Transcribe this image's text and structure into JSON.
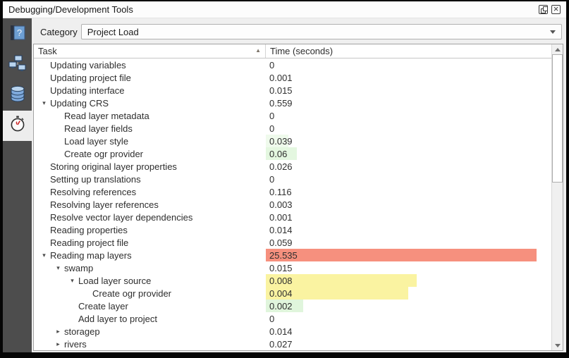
{
  "window": {
    "title": "Debugging/Development Tools"
  },
  "titlebar": {
    "buttons": [
      "float",
      "close"
    ]
  },
  "sidebar": {
    "tabs": [
      {
        "name": "help",
        "icon": "help-book-icon",
        "active": false
      },
      {
        "name": "network-logger",
        "icon": "network-icon",
        "active": false
      },
      {
        "name": "query-logger",
        "icon": "database-icon",
        "active": false
      },
      {
        "name": "profiler",
        "icon": "stopwatch-icon",
        "active": true
      }
    ]
  },
  "toolbar": {
    "category_label": "Category",
    "category_value": "Project Load"
  },
  "table": {
    "columns": [
      {
        "label": "Task",
        "sort": "asc"
      },
      {
        "label": "Time (seconds)",
        "sort": null
      }
    ],
    "rows": [
      {
        "label": "Updating variables",
        "level": 0,
        "expander": "none",
        "value": "0",
        "bar_pct": 0,
        "bar_color": null
      },
      {
        "label": "Updating project file",
        "level": 0,
        "expander": "none",
        "value": "0.001",
        "bar_pct": 0,
        "bar_color": null
      },
      {
        "label": "Updating interface",
        "level": 0,
        "expander": "none",
        "value": "0.015",
        "bar_pct": 0,
        "bar_color": null
      },
      {
        "label": "Updating CRS",
        "level": 0,
        "expander": "open",
        "value": "0.559",
        "bar_pct": 0,
        "bar_color": null
      },
      {
        "label": "Read layer metadata",
        "level": 1,
        "expander": "none",
        "value": "0",
        "bar_pct": 0,
        "bar_color": null
      },
      {
        "label": "Read layer fields",
        "level": 1,
        "expander": "none",
        "value": "0",
        "bar_pct": 0,
        "bar_color": null
      },
      {
        "label": "Load layer style",
        "level": 1,
        "expander": "none",
        "value": "0.039",
        "bar_pct": 8,
        "bar_color": "#effaec"
      },
      {
        "label": "Create ogr provider",
        "level": 1,
        "expander": "none",
        "value": "0.06",
        "bar_pct": 11,
        "bar_color": "#e4f7e0"
      },
      {
        "label": "Storing original layer properties",
        "level": 0,
        "expander": "none",
        "value": "0.026",
        "bar_pct": 0,
        "bar_color": null
      },
      {
        "label": "Setting up translations",
        "level": 0,
        "expander": "none",
        "value": "0",
        "bar_pct": 0,
        "bar_color": null
      },
      {
        "label": "Resolving references",
        "level": 0,
        "expander": "none",
        "value": "0.116",
        "bar_pct": 0,
        "bar_color": null
      },
      {
        "label": "Resolving layer references",
        "level": 0,
        "expander": "none",
        "value": "0.003",
        "bar_pct": 0,
        "bar_color": null
      },
      {
        "label": "Resolve vector layer dependencies",
        "level": 0,
        "expander": "none",
        "value": "0.001",
        "bar_pct": 0,
        "bar_color": null
      },
      {
        "label": "Reading properties",
        "level": 0,
        "expander": "none",
        "value": "0.014",
        "bar_pct": 0,
        "bar_color": null
      },
      {
        "label": "Reading project file",
        "level": 0,
        "expander": "none",
        "value": "0.059",
        "bar_pct": 0,
        "bar_color": null
      },
      {
        "label": "Reading map layers",
        "level": 0,
        "expander": "open",
        "value": "25.535",
        "bar_pct": 95,
        "bar_color": "#f6907e"
      },
      {
        "label": "swamp",
        "level": 1,
        "expander": "open",
        "value": "0.015",
        "bar_pct": 0,
        "bar_color": null
      },
      {
        "label": "Load layer source",
        "level": 2,
        "expander": "open",
        "value": "0.008",
        "bar_pct": 53,
        "bar_color": "#faf3a1"
      },
      {
        "label": "Create ogr provider",
        "level": 3,
        "expander": "none",
        "value": "0.004",
        "bar_pct": 50,
        "bar_color": "#faf3a1"
      },
      {
        "label": "Create layer",
        "level": 2,
        "expander": "none",
        "value": "0.002",
        "bar_pct": 13,
        "bar_color": "#e0f5dc"
      },
      {
        "label": "Add layer to project",
        "level": 2,
        "expander": "none",
        "value": "0",
        "bar_pct": 0,
        "bar_color": null
      },
      {
        "label": "storagep",
        "level": 1,
        "expander": "closed",
        "value": "0.014",
        "bar_pct": 0,
        "bar_color": null
      },
      {
        "label": "rivers",
        "level": 1,
        "expander": "closed",
        "value": "0.027",
        "bar_pct": 0,
        "bar_color": null
      }
    ]
  },
  "colors": {
    "bar_red": "#f6907e",
    "bar_yellow": "#faf3a1",
    "bar_green": "#e0f5dc",
    "sidebar_bg": "#4d4d4d",
    "sidebar_active_bg": "#ededed",
    "accent_blue": "#6d9fd4"
  }
}
